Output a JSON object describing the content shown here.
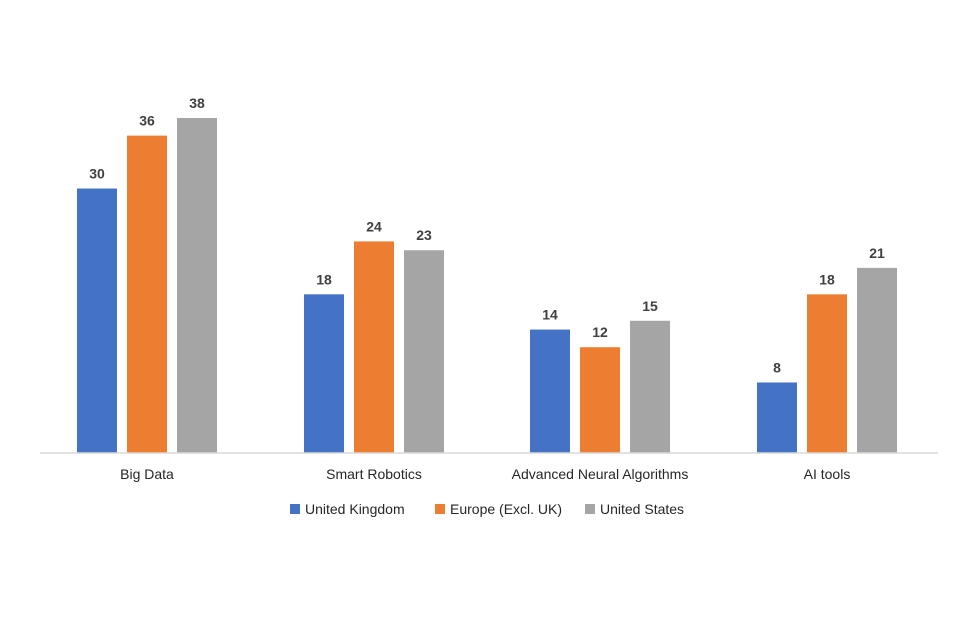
{
  "chart_data": {
    "type": "bar",
    "title": "",
    "xlabel": "",
    "ylabel": "",
    "categories": [
      "Big Data",
      "Smart Robotics",
      "Advanced Neural Algorithms",
      "AI tools"
    ],
    "series": [
      {
        "name": "United Kingdom",
        "color": "#4472C4",
        "values": [
          30,
          18,
          14,
          8
        ]
      },
      {
        "name": "Europe (Excl. UK)",
        "color": "#ED7D31",
        "values": [
          36,
          24,
          12,
          18
        ]
      },
      {
        "name": "United States",
        "color": "#A5A5A5",
        "values": [
          38,
          23,
          15,
          21
        ]
      }
    ],
    "ylim": [
      0,
      38
    ],
    "grid": false,
    "legend_position": "bottom",
    "data_labels": true
  }
}
